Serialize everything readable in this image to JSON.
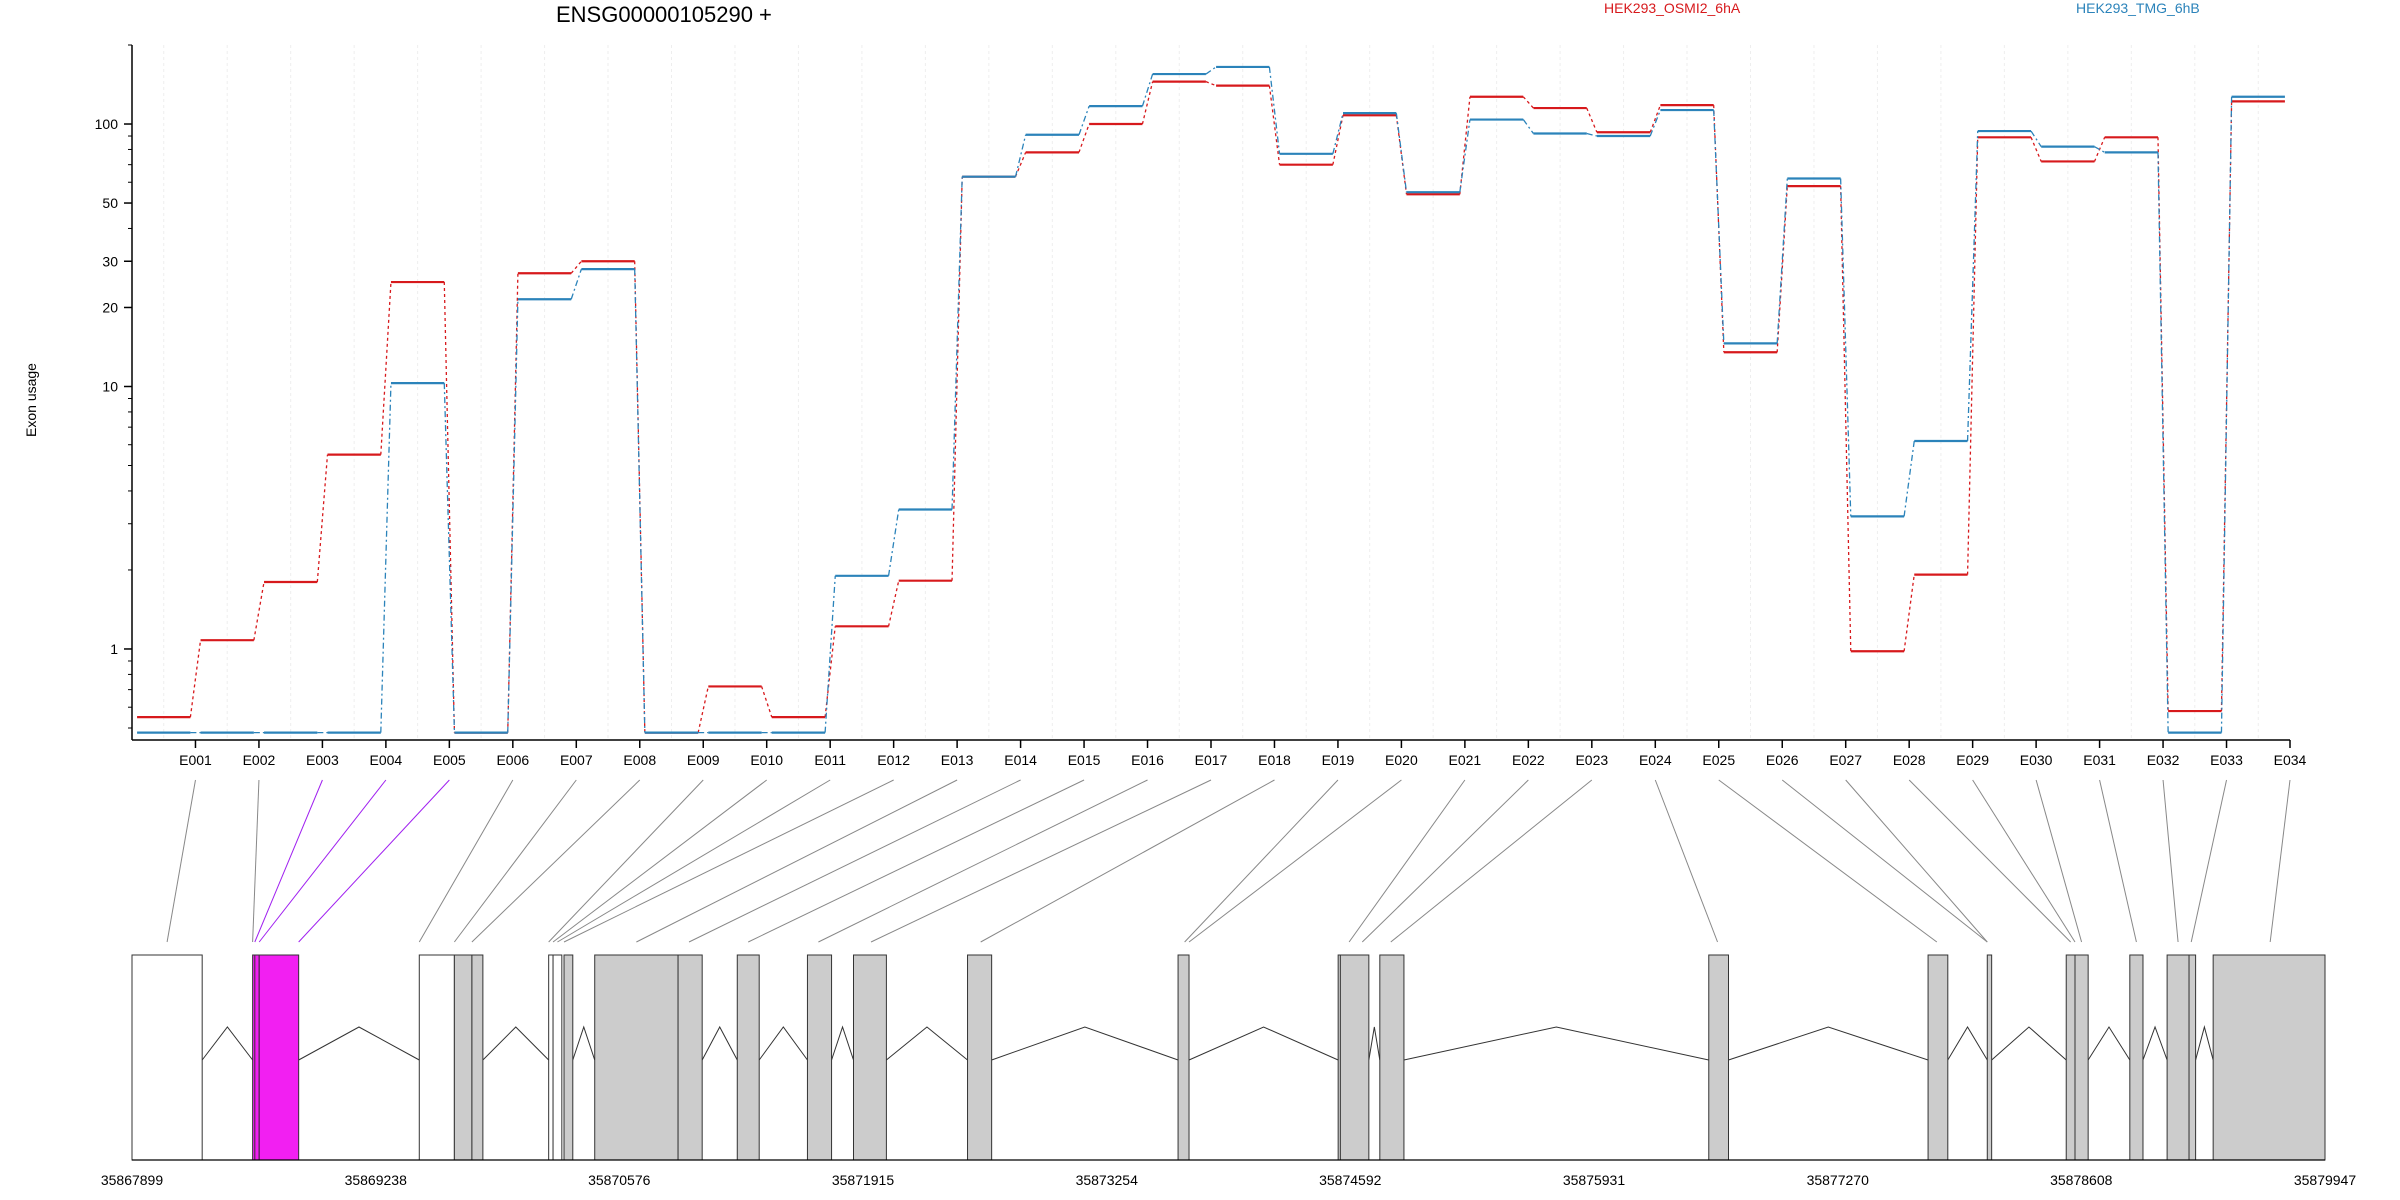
{
  "chart_data": {
    "type": "line",
    "title": "ENSG00000105290 +",
    "xlabel": "",
    "ylabel": "Exon usage",
    "yscale": "log",
    "ylim": [
      0.45,
      200
    ],
    "y_ticks": [
      1,
      10,
      20,
      30,
      50,
      100
    ],
    "y_tick_labels": [
      "1",
      "10",
      "20",
      "30",
      "50",
      "100"
    ],
    "grid": false,
    "legend_placement": "top",
    "categories": [
      "E001",
      "E002",
      "E003",
      "E004",
      "E005",
      "E006",
      "E007",
      "E008",
      "E009",
      "E010",
      "E011",
      "E012",
      "E013",
      "E014",
      "E015",
      "E016",
      "E017",
      "E018",
      "E019",
      "E020",
      "E021",
      "E022",
      "E023",
      "E024",
      "E025",
      "E026",
      "E027",
      "E028",
      "E029",
      "E030",
      "E031",
      "E032",
      "E033",
      "E034"
    ],
    "series": [
      {
        "name": "HEK293_OSMI2_6hA",
        "color": "#d7191c",
        "values": [
          0.55,
          1.08,
          1.8,
          5.5,
          25,
          0.48,
          27,
          30,
          0.48,
          0.72,
          0.55,
          1.22,
          1.82,
          63,
          78,
          100,
          145,
          140,
          70,
          108,
          54,
          127,
          115,
          93,
          118,
          13.5,
          58,
          0.98,
          1.92,
          89,
          72,
          89,
          0.58,
          122
        ],
        "line_style": "dashed-connectors"
      },
      {
        "name": "HEK293_TMG_6hB",
        "color": "#2b83ba",
        "values": [
          0.48,
          0.48,
          0.48,
          0.48,
          10.3,
          0.48,
          21.5,
          28,
          0.48,
          0.48,
          0.48,
          1.9,
          3.4,
          63,
          91,
          117,
          155,
          165,
          77,
          110,
          55,
          104,
          92,
          90,
          113,
          14.6,
          62,
          3.2,
          6.2,
          94,
          82,
          78,
          0.48,
          127
        ],
        "line_style": "dash-dot-connectors"
      }
    ],
    "gene_model": {
      "coordinate_ticks": [
        "35867899",
        "35869238",
        "35870576",
        "35871915",
        "35873254",
        "35874592",
        "35875931",
        "35877270",
        "35878608",
        "35879947"
      ],
      "highlight_exons": [
        "E003",
        "E004",
        "E005"
      ],
      "highlight_color": "#f21ff2",
      "exon_fill": "#cccccc",
      "utr_fill": "#ffffff"
    }
  }
}
